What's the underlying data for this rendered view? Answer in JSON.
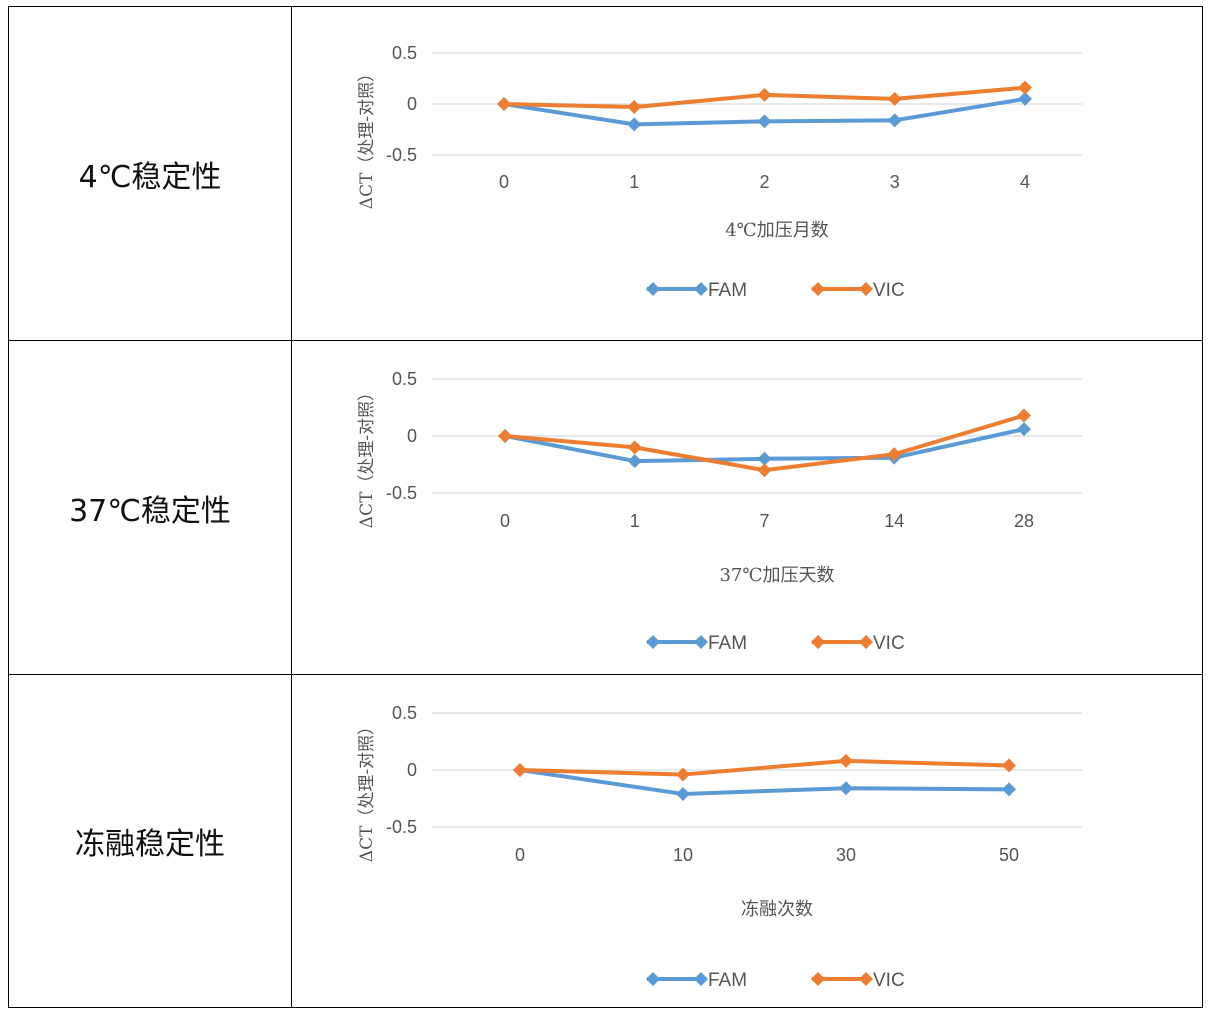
{
  "rows": [
    {
      "label": "4℃稳定性"
    },
    {
      "label": "37℃稳定性"
    },
    {
      "label": "冻融稳定性"
    }
  ],
  "colors": {
    "FAM": "#5B9BD5",
    "VIC": "#ED7D31",
    "grid": "#d9d9d9",
    "text": "#595959"
  },
  "chart_data": [
    {
      "type": "line",
      "categories": [
        "0",
        "1",
        "2",
        "3",
        "4"
      ],
      "series": [
        {
          "name": "FAM",
          "values": [
            0,
            -0.2,
            -0.17,
            -0.16,
            0.05
          ]
        },
        {
          "name": "VIC",
          "values": [
            0,
            -0.03,
            0.09,
            0.05,
            0.16
          ]
        }
      ],
      "xlabel": "4℃加压月数",
      "ylabel": "ΔCT（处理-对照）",
      "yticks": [
        "0.5",
        "0",
        "-0.5"
      ],
      "ylim": [
        -0.5,
        0.5
      ],
      "legend": "bottom"
    },
    {
      "type": "line",
      "categories": [
        "0",
        "1",
        "7",
        "14",
        "28"
      ],
      "series": [
        {
          "name": "FAM",
          "values": [
            0,
            -0.22,
            -0.2,
            -0.19,
            0.06
          ]
        },
        {
          "name": "VIC",
          "values": [
            0,
            -0.1,
            -0.3,
            -0.16,
            0.18
          ]
        }
      ],
      "xlabel": "37℃加压天数",
      "ylabel": "ΔCT（处理-对照）",
      "yticks": [
        "0.5",
        "0",
        "-0.5"
      ],
      "ylim": [
        -0.5,
        0.5
      ],
      "legend": "bottom"
    },
    {
      "type": "line",
      "categories": [
        "0",
        "10",
        "30",
        "50"
      ],
      "series": [
        {
          "name": "FAM",
          "values": [
            0,
            -0.21,
            -0.16,
            -0.17
          ]
        },
        {
          "name": "VIC",
          "values": [
            0,
            -0.04,
            0.08,
            0.04
          ]
        }
      ],
      "xlabel": "冻融次数",
      "ylabel": "ΔCT（处理-对照）",
      "yticks": [
        "0.5",
        "0",
        "-0.5"
      ],
      "ylim": [
        -0.5,
        0.5
      ],
      "legend": "bottom"
    }
  ]
}
